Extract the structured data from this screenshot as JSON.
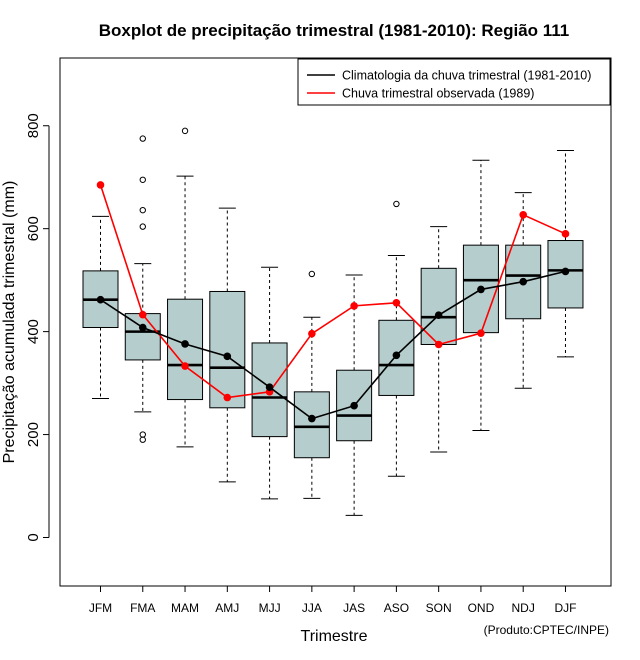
{
  "chart_data": {
    "type": "boxplot",
    "title": "Boxplot de precipitação trimestral (1981-2010): Região 111",
    "xlabel": "Trimestre",
    "ylabel": "Precipitação acumulada trimestral (mm)",
    "credit": "(Produto:CPTEC/INPE)",
    "ylim": [
      -95,
      930
    ],
    "yticks": [
      0,
      200,
      400,
      600,
      800
    ],
    "categories": [
      "JFM",
      "FMA",
      "MAM",
      "AMJ",
      "MJJ",
      "JJA",
      "JAS",
      "ASO",
      "SON",
      "OND",
      "NDJ",
      "DJF"
    ],
    "boxes": [
      {
        "whisker_low": 270,
        "q1": 408,
        "median": 462,
        "q3": 518,
        "whisker_high": 624,
        "outliers": []
      },
      {
        "whisker_low": 244,
        "q1": 345,
        "median": 400,
        "q3": 435,
        "whisker_high": 532,
        "outliers": [
          200,
          190,
          604,
          636,
          695,
          775
        ]
      },
      {
        "whisker_low": 176,
        "q1": 268,
        "median": 335,
        "q3": 463,
        "whisker_high": 702,
        "outliers": [
          790
        ]
      },
      {
        "whisker_low": 108,
        "q1": 252,
        "median": 330,
        "q3": 478,
        "whisker_high": 640,
        "outliers": []
      },
      {
        "whisker_low": 75,
        "q1": 196,
        "median": 272,
        "q3": 378,
        "whisker_high": 525,
        "outliers": []
      },
      {
        "whisker_low": 76,
        "q1": 155,
        "median": 215,
        "q3": 283,
        "whisker_high": 428,
        "outliers": [
          512
        ]
      },
      {
        "whisker_low": 43,
        "q1": 188,
        "median": 237,
        "q3": 325,
        "whisker_high": 510,
        "outliers": []
      },
      {
        "whisker_low": 119,
        "q1": 276,
        "median": 335,
        "q3": 422,
        "whisker_high": 548,
        "outliers": [
          648
        ]
      },
      {
        "whisker_low": 166,
        "q1": 375,
        "median": 428,
        "q3": 523,
        "whisker_high": 604,
        "outliers": []
      },
      {
        "whisker_low": 208,
        "q1": 398,
        "median": 500,
        "q3": 568,
        "whisker_high": 733,
        "outliers": []
      },
      {
        "whisker_low": 290,
        "q1": 425,
        "median": 509,
        "q3": 568,
        "whisker_high": 670,
        "outliers": []
      },
      {
        "whisker_low": 351,
        "q1": 446,
        "median": 519,
        "q3": 577,
        "whisker_high": 752,
        "outliers": []
      }
    ],
    "series": [
      {
        "name": "Climatologia da chuva trimestral (1981-2010)",
        "color": "#000000",
        "values": [
          462,
          408,
          376,
          352,
          292,
          231,
          256,
          354,
          432,
          482,
          497,
          517
        ]
      },
      {
        "name": "Chuva trimestral observada (1989)",
        "color": "#ff0000",
        "values": [
          685,
          433,
          333,
          272,
          283,
          396,
          450,
          456,
          375,
          397,
          627,
          590
        ]
      }
    ],
    "box_fill": "#b6cdcd",
    "legend_position": "top-right"
  }
}
